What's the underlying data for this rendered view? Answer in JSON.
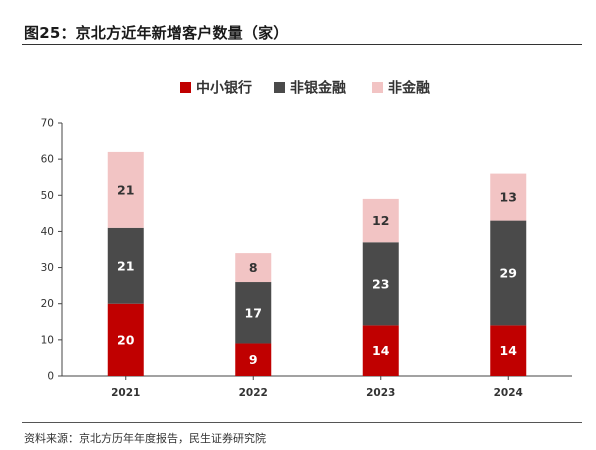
{
  "figure": {
    "title": "图25：京北方近年新增客户数量（家）",
    "source": "资料来源：京北方历年年度报告，民生证券研究院"
  },
  "chart_data": {
    "type": "bar",
    "stacked": true,
    "categories": [
      "2021",
      "2022",
      "2023",
      "2024"
    ],
    "series": [
      {
        "name": "中小银行",
        "values": [
          20,
          9,
          14,
          14
        ],
        "color": "#c00000",
        "label_color": "#ffffff"
      },
      {
        "name": "非银金融",
        "values": [
          21,
          17,
          23,
          29
        ],
        "color": "#4a4a4a",
        "label_color": "#ffffff"
      },
      {
        "name": "非金融",
        "values": [
          21,
          8,
          12,
          13
        ],
        "color": "#f2c4c4",
        "label_color": "#333333"
      }
    ],
    "yticks": [
      0,
      10,
      20,
      30,
      40,
      50,
      60,
      70
    ],
    "ylim": [
      0,
      70
    ],
    "legend_position": "top-center",
    "grid": false
  }
}
